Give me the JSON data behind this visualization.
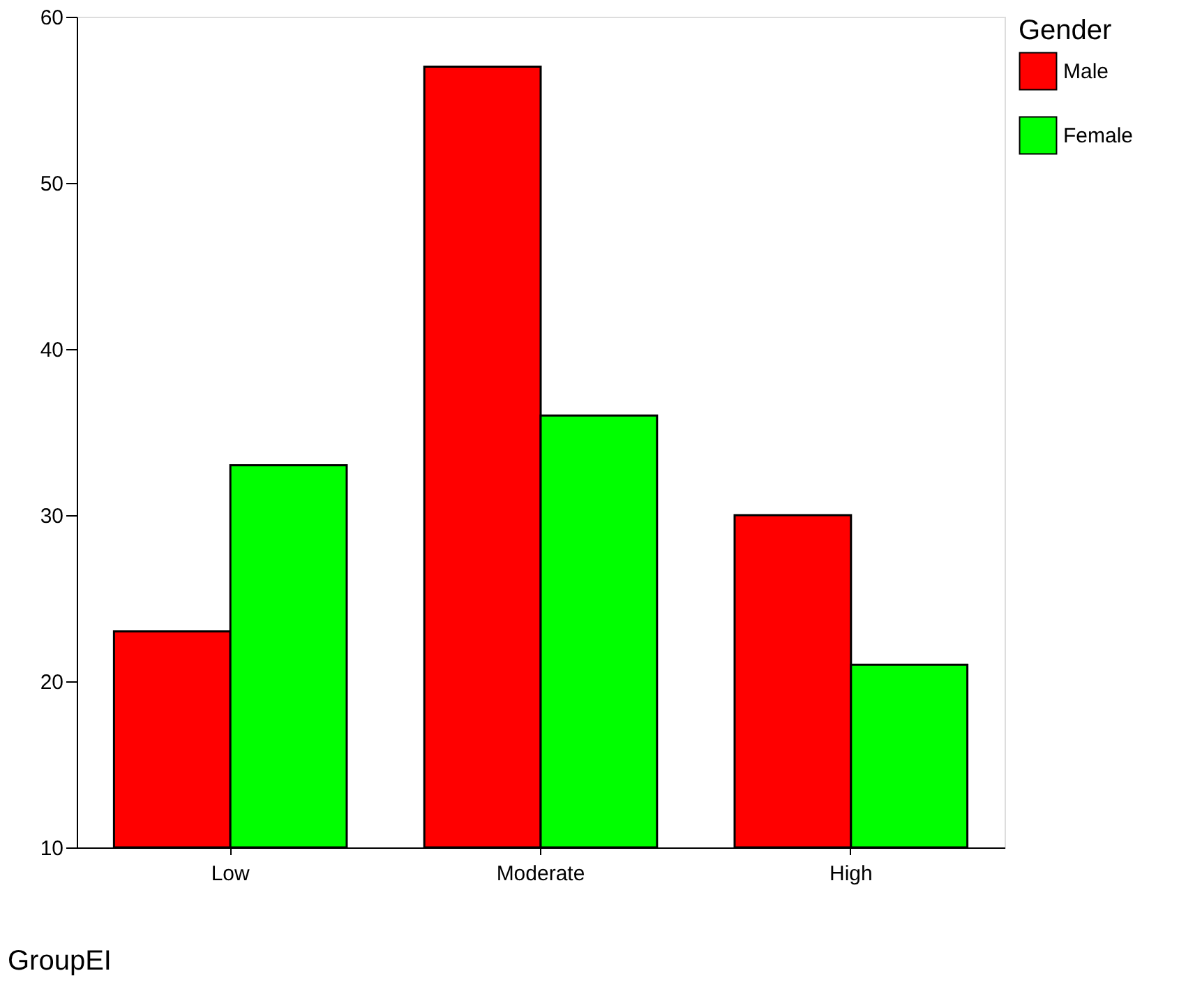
{
  "chart_data": {
    "type": "bar",
    "categories": [
      "Low",
      "Moderate",
      "High"
    ],
    "series": [
      {
        "name": "Male",
        "color": "#ff0000",
        "values": [
          23,
          57,
          30
        ]
      },
      {
        "name": "Female",
        "color": "#00ff00",
        "values": [
          33,
          36,
          21
        ]
      }
    ],
    "xlabel": "GroupEI",
    "legend_title": "Gender",
    "legend": "right",
    "ylim": [
      10,
      60
    ],
    "yticks": [
      10,
      20,
      30,
      40,
      50,
      60
    ],
    "grid": false
  }
}
